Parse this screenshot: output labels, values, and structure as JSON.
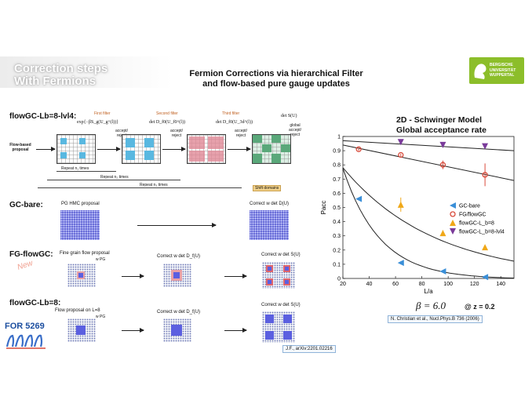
{
  "header": {
    "corner_title_line1": "Correction steps",
    "corner_title_line2": "With Fermions",
    "title_line1": "Fermion Corrections via hierarchical Filter",
    "title_line2": "and flow-based pure gauge updates",
    "logo_line1": "BERGISCHE",
    "logo_line2": "UNIVERSITÄT",
    "logo_line3": "WUPPERTAL"
  },
  "diagram": {
    "section1_label": "flowGC-Lb=8-lvl4:",
    "first_filter": "First filter",
    "second_filter": "Second filter",
    "third_filter": "Third filter",
    "formula1": "exp{−βS_g(U_g^(l))}",
    "formula2": "det D_f0(U_f0^(l))",
    "formula3": "det D_f0(U_3d^(l))",
    "formula4": "det S(U)",
    "accept_reject": "accept/ reject",
    "global_accept": "global accept/ reject",
    "flow_based_proposal": "Flow-based proposal",
    "repeat1": "Repeat n₁ times",
    "repeat2": "Repeat n₂ times",
    "repeat3": "Repeat n₃ times",
    "shift_domains": "Shift domains",
    "section2_label": "GC-bare:",
    "pg_hmc_proposal": "PG HMC proposal",
    "correct_det_D": "Correct w det D(U)",
    "section3_label": "FG-flowGC:",
    "fine_grain_proposal": "Fine grain flow proposal",
    "w_pg": "w PG",
    "correct_det_df": "Correct w det D_f(U)",
    "correct_det_s": "Correct w det S(U)",
    "new_badge": "New",
    "section4_label": "flowGC-Lb=8:",
    "flow_proposal_l8": "Flow proposal on L=8",
    "w_pg2": "w PG",
    "correct_det_df2": "Correct w det D_f(U)",
    "correct_det_s2": "Correct w det S(U)",
    "ref_left": "J.F., arXiv:2201.02216",
    "logo_bottom": "FOR 5269"
  },
  "chart_header": {
    "title_line1": "2D - Schwinger Model",
    "title_line2": "Global acceptance rate",
    "beta_label": "β = 6.0",
    "z_label": "@ z = 0.2",
    "ref_right": "N. Christian et al., Nucl.Phys.B 736 (2006)"
  },
  "chart_data": {
    "type": "scatter",
    "xlabel": "L/a",
    "ylabel": "Pacc",
    "xlim": [
      20,
      150
    ],
    "ylim": [
      0,
      1
    ],
    "xticks": [
      20,
      40,
      60,
      80,
      100,
      120,
      140
    ],
    "yticks": [
      0,
      0.1,
      0.2,
      0.3,
      0.4,
      0.5,
      0.6,
      0.7,
      0.8,
      0.9,
      1
    ],
    "legend_position": "center-right",
    "series": [
      {
        "name": "GC-bare",
        "marker": "tri-left",
        "color": "#3a8fd8",
        "x": [
          32,
          64,
          96,
          128
        ],
        "y": [
          0.56,
          0.11,
          0.05,
          0.01
        ],
        "err": [
          0.01,
          0.01,
          0.01,
          0.01
        ]
      },
      {
        "name": "FG/flowGC",
        "marker": "circle",
        "color": "#d84a3a",
        "x": [
          32,
          64,
          96,
          128
        ],
        "y": [
          0.91,
          0.87,
          0.8,
          0.73
        ],
        "err": [
          0.01,
          0.01,
          0.03,
          0.08
        ]
      },
      {
        "name": "flowGC-L_b=8",
        "marker": "tri-up",
        "color": "#f0a818",
        "x": [
          64,
          96,
          128
        ],
        "y": [
          0.52,
          0.32,
          0.22
        ],
        "err": [
          0.05,
          0.02,
          0.01
        ]
      },
      {
        "name": "flowGC-L_b=8-lvl4",
        "marker": "tri-down",
        "color": "#7a3a9a",
        "x": [
          64,
          96,
          128
        ],
        "y": [
          0.96,
          0.94,
          0.93
        ],
        "err": [
          0.01,
          0.01,
          0.01
        ]
      }
    ],
    "fits": [
      {
        "x": [
          20,
          150
        ],
        "y": [
          0.97,
          0.9
        ]
      },
      {
        "x": [
          20,
          150
        ],
        "y": [
          0.94,
          0.69
        ]
      },
      {
        "x": [
          20,
          150
        ],
        "y": [
          0.78,
          0.13
        ]
      },
      {
        "x": [
          20,
          150
        ],
        "y": [
          0.78,
          0.0
        ]
      }
    ]
  }
}
